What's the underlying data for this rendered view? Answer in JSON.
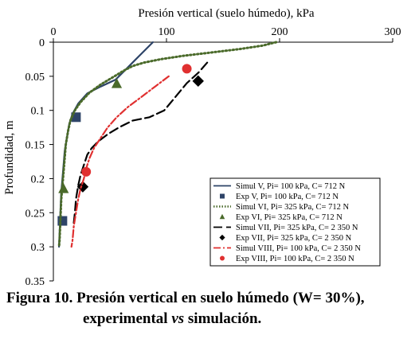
{
  "chart_data": {
    "type": "line",
    "xlabel": "Presión vertical (suelo húmedo), kPa",
    "ylabel": "Profundidad, m",
    "xlim": [
      0,
      300
    ],
    "ylim": [
      0,
      0.35
    ],
    "x_axis_position": "top",
    "y_axis_inverted": true,
    "xticks": [
      "0",
      "100",
      "200",
      "300"
    ],
    "yticks": [
      "0",
      "0.05",
      "0.1",
      "0.15",
      "0.2",
      "0.25",
      "0.3",
      "0.35"
    ],
    "grid": false,
    "legend_position": "bottom-right",
    "series": [
      {
        "name": "Simul V, Pi= 100 kPa, C= 712 N",
        "kind": "line",
        "color": "#2e4468",
        "dash": "solid",
        "points": [
          [
            88,
            0
          ],
          [
            82,
            0.01
          ],
          [
            76,
            0.02
          ],
          [
            70,
            0.03
          ],
          [
            64,
            0.04
          ],
          [
            55,
            0.055
          ],
          [
            42,
            0.065
          ],
          [
            30,
            0.075
          ],
          [
            22,
            0.09
          ],
          [
            17,
            0.105
          ],
          [
            14,
            0.12
          ],
          [
            12,
            0.14
          ],
          [
            10,
            0.16
          ],
          [
            9,
            0.18
          ],
          [
            8,
            0.2
          ],
          [
            7,
            0.22
          ],
          [
            6.5,
            0.24
          ],
          [
            6,
            0.26
          ],
          [
            5.5,
            0.28
          ],
          [
            5,
            0.3
          ]
        ]
      },
      {
        "name": "Exp V, Pi= 100 kPa, C= 712 N",
        "kind": "marker",
        "marker": "square",
        "color": "#2e4468",
        "points": [
          [
            20,
            0.11
          ],
          [
            8,
            0.262
          ]
        ]
      },
      {
        "name": "Simul VI, Pi= 325 kPa, C= 712 N",
        "kind": "line",
        "color": "#4a6a2a",
        "dash": "dotted",
        "points": [
          [
            197,
            0
          ],
          [
            185,
            0.005
          ],
          [
            165,
            0.01
          ],
          [
            140,
            0.015
          ],
          [
            115,
            0.02
          ],
          [
            95,
            0.025
          ],
          [
            80,
            0.03
          ],
          [
            70,
            0.035
          ],
          [
            62,
            0.042
          ],
          [
            52,
            0.052
          ],
          [
            42,
            0.062
          ],
          [
            32,
            0.074
          ],
          [
            24,
            0.088
          ],
          [
            19,
            0.1
          ],
          [
            15,
            0.115
          ],
          [
            13,
            0.13
          ],
          [
            11,
            0.15
          ],
          [
            10,
            0.17
          ],
          [
            9,
            0.19
          ],
          [
            8,
            0.21
          ],
          [
            7,
            0.23
          ],
          [
            6.5,
            0.25
          ],
          [
            6,
            0.27
          ],
          [
            5.5,
            0.29
          ],
          [
            5,
            0.3
          ]
        ]
      },
      {
        "name": "Exp VI, Pi= 325 kPa, C= 712 N",
        "kind": "marker",
        "marker": "triangle",
        "color": "#4a6a2a",
        "points": [
          [
            56,
            0.061
          ],
          [
            9,
            0.215
          ]
        ]
      },
      {
        "name": "Simul VII, Pi= 325 kPa, C= 2 350 N",
        "kind": "line",
        "color": "#000000",
        "dash": "longdash",
        "points": [
          [
            136,
            0.03
          ],
          [
            128,
            0.045
          ],
          [
            118,
            0.06
          ],
          [
            108,
            0.08
          ],
          [
            98,
            0.1
          ],
          [
            85,
            0.11
          ],
          [
            70,
            0.115
          ],
          [
            58,
            0.125
          ],
          [
            48,
            0.135
          ],
          [
            40,
            0.145
          ],
          [
            34,
            0.155
          ],
          [
            30,
            0.165
          ],
          [
            27,
            0.18
          ],
          [
            24,
            0.195
          ],
          [
            22,
            0.21
          ],
          [
            20,
            0.23
          ],
          [
            19,
            0.25
          ],
          [
            18,
            0.265
          ]
        ]
      },
      {
        "name": "Exp VII, Pi= 325 kPa, C= 2 350 N",
        "kind": "marker",
        "marker": "diamond",
        "color": "#000000",
        "points": [
          [
            128,
            0.057
          ],
          [
            26,
            0.212
          ]
        ]
      },
      {
        "name": "Simul VIII, Pi= 100 kPa, C= 2 350 N",
        "kind": "line",
        "color": "#e03030",
        "dash": "dashdot",
        "points": [
          [
            102,
            0.05
          ],
          [
            90,
            0.065
          ],
          [
            78,
            0.08
          ],
          [
            66,
            0.095
          ],
          [
            56,
            0.11
          ],
          [
            48,
            0.125
          ],
          [
            42,
            0.14
          ],
          [
            36,
            0.155
          ],
          [
            32,
            0.17
          ],
          [
            29,
            0.185
          ],
          [
            27,
            0.2
          ],
          [
            24,
            0.215
          ],
          [
            22,
            0.23
          ],
          [
            20,
            0.25
          ],
          [
            18,
            0.27
          ],
          [
            17,
            0.29
          ],
          [
            16,
            0.3
          ]
        ]
      },
      {
        "name": "Exp VIII, Pi= 100 kPa, C= 2 350 N",
        "kind": "marker",
        "marker": "circle",
        "color": "#e03030",
        "points": [
          [
            118,
            0.039
          ],
          [
            29,
            0.19
          ]
        ]
      }
    ]
  },
  "caption": {
    "line1": "Figura 10. Presión vertical en suelo húmedo (W= 30%),",
    "line2_pre": "experimental ",
    "line2_em": "vs",
    "line2_post": " simulación."
  }
}
